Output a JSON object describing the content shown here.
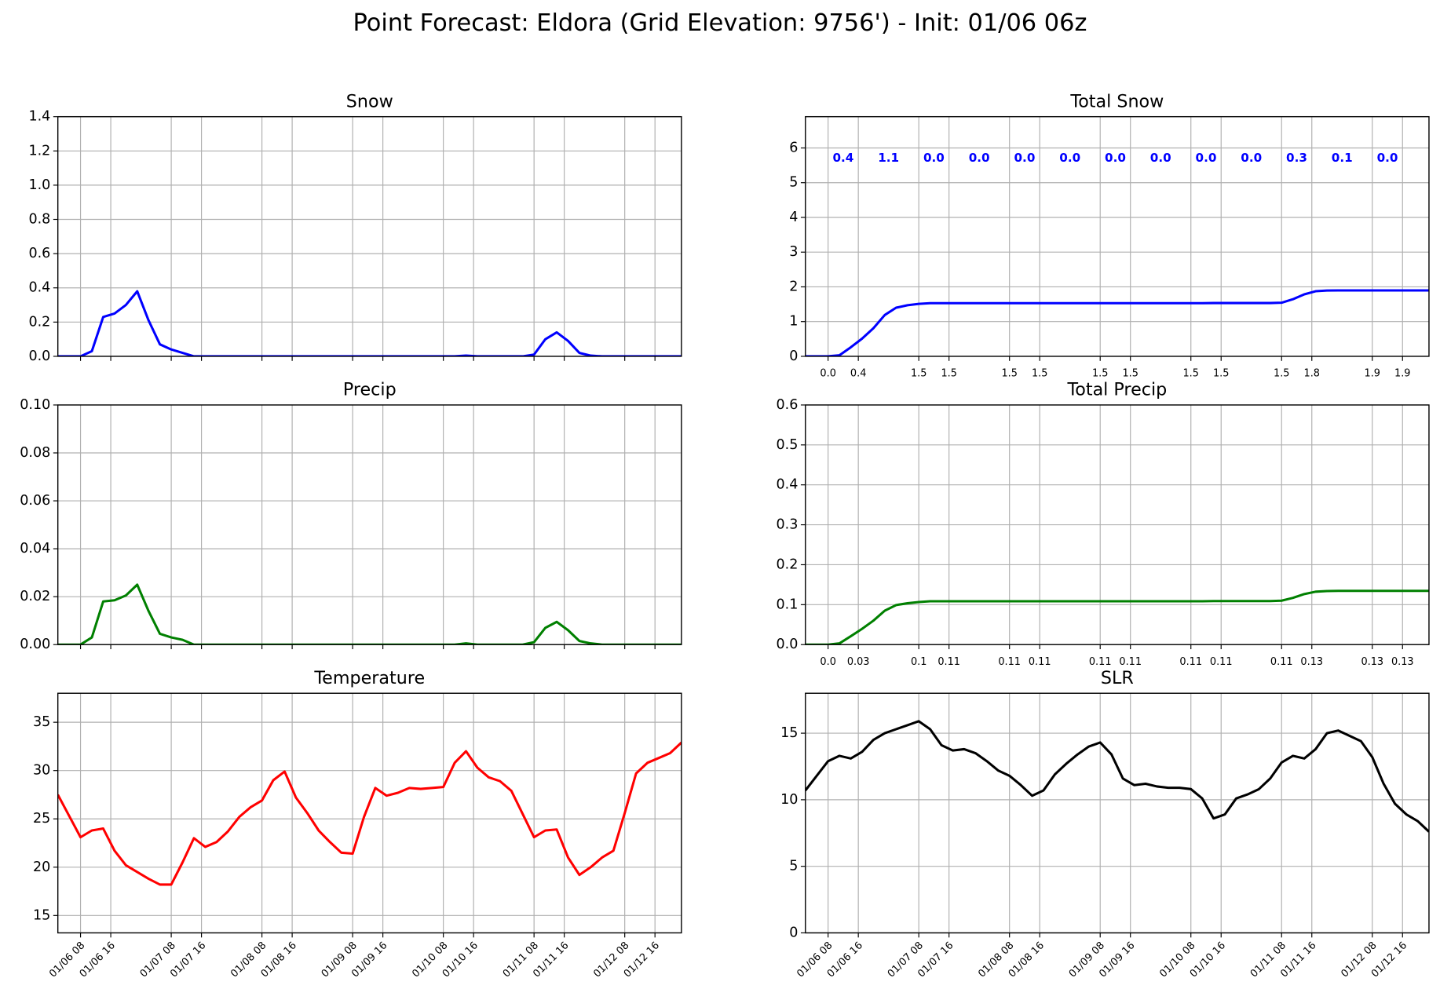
{
  "title": "Point Forecast: Eldora (Grid Elevation: 9756') - Init: 01/06 06z",
  "chart_data": [
    {
      "type": "line",
      "title": "Snow",
      "color": "#0000ff",
      "grid": true,
      "xtick_labels": false,
      "x": [
        "01/06 02",
        "01/06 05",
        "01/06 08",
        "01/06 11",
        "01/06 14",
        "01/06 17",
        "01/06 20",
        "01/06 23",
        "01/07 02",
        "01/07 05",
        "01/07 08",
        "01/07 11",
        "01/07 14",
        "01/07 17",
        "01/07 20",
        "01/07 23",
        "01/08 02",
        "01/08 05",
        "01/08 08",
        "01/08 11",
        "01/08 14",
        "01/08 17",
        "01/08 20",
        "01/08 23",
        "01/09 02",
        "01/09 05",
        "01/09 08",
        "01/09 11",
        "01/09 14",
        "01/09 17",
        "01/09 20",
        "01/09 23",
        "01/10 02",
        "01/10 05",
        "01/10 08",
        "01/10 11",
        "01/10 14",
        "01/10 17",
        "01/10 20",
        "01/10 23",
        "01/11 02",
        "01/11 05",
        "01/11 08",
        "01/11 11",
        "01/11 14",
        "01/11 17",
        "01/11 20",
        "01/11 23",
        "01/12 02",
        "01/12 05",
        "01/12 08",
        "01/12 11",
        "01/12 14",
        "01/12 17",
        "01/12 20",
        "01/12 23"
      ],
      "values": [
        0,
        0,
        0,
        0.03,
        0.23,
        0.25,
        0.3,
        0.38,
        0.21,
        0.07,
        0.04,
        0.02,
        0,
        0,
        0,
        0,
        0,
        0,
        0,
        0,
        0,
        0,
        0,
        0,
        0,
        0,
        0,
        0,
        0,
        0,
        0,
        0,
        0,
        0,
        0,
        0,
        0.004,
        0,
        0,
        0,
        0,
        0,
        0.01,
        0.1,
        0.14,
        0.09,
        0.02,
        0.004,
        0,
        0,
        0,
        0,
        0,
        0,
        0,
        0
      ],
      "xlim": [
        "01/06 02",
        "01/12 23"
      ],
      "xticks": [
        "01/06 08",
        "01/06 16",
        "01/07 08",
        "01/07 16",
        "01/08 08",
        "01/08 16",
        "01/09 08",
        "01/09 16",
        "01/10 08",
        "01/10 16",
        "01/11 08",
        "01/11 16",
        "01/12 08",
        "01/12 16"
      ],
      "ylim": [
        0,
        1.4
      ],
      "yticks": [
        {
          "value": 0,
          "label": "0.0"
        },
        0.2,
        0.4,
        0.6,
        0.8,
        {
          "value": 1,
          "label": "1.0"
        },
        1.2,
        1.4
      ]
    },
    {
      "type": "line",
      "title": "Total Snow",
      "color": "#0000ff",
      "grid": true,
      "x": [
        "01/06 02",
        "01/06 05",
        "01/06 08",
        "01/06 11",
        "01/06 14",
        "01/06 17",
        "01/06 20",
        "01/06 23",
        "01/07 02",
        "01/07 05",
        "01/07 08",
        "01/07 11",
        "01/07 14",
        "01/07 17",
        "01/07 20",
        "01/07 23",
        "01/08 02",
        "01/08 05",
        "01/08 08",
        "01/08 11",
        "01/08 14",
        "01/08 17",
        "01/08 20",
        "01/08 23",
        "01/09 02",
        "01/09 05",
        "01/09 08",
        "01/09 11",
        "01/09 14",
        "01/09 17",
        "01/09 20",
        "01/09 23",
        "01/10 02",
        "01/10 05",
        "01/10 08",
        "01/10 11",
        "01/10 14",
        "01/10 17",
        "01/10 20",
        "01/10 23",
        "01/11 02",
        "01/11 05",
        "01/11 08",
        "01/11 11",
        "01/11 14",
        "01/11 17",
        "01/11 20",
        "01/11 23",
        "01/12 02",
        "01/12 05",
        "01/12 08",
        "01/12 11",
        "01/12 14",
        "01/12 17",
        "01/12 20",
        "01/12 23"
      ],
      "values": [
        0,
        0,
        0,
        0.03,
        0.26,
        0.51,
        0.81,
        1.19,
        1.4,
        1.47,
        1.51,
        1.53,
        1.53,
        1.53,
        1.53,
        1.53,
        1.53,
        1.53,
        1.53,
        1.53,
        1.53,
        1.53,
        1.53,
        1.53,
        1.53,
        1.53,
        1.53,
        1.53,
        1.53,
        1.53,
        1.53,
        1.53,
        1.53,
        1.53,
        1.53,
        1.53,
        1.534,
        1.534,
        1.534,
        1.534,
        1.534,
        1.534,
        1.544,
        1.644,
        1.784,
        1.874,
        1.894,
        1.898,
        1.898,
        1.898,
        1.898,
        1.898,
        1.898,
        1.898,
        1.898,
        1.898
      ],
      "xlim": [
        "01/06 02",
        "01/12 23"
      ],
      "xticks": [
        {
          "value": "01/06 08",
          "label": "0.0"
        },
        {
          "value": "01/06 16",
          "label": "0.4"
        },
        {
          "value": "01/07 08",
          "label": "1.5"
        },
        {
          "value": "01/07 16",
          "label": "1.5"
        },
        {
          "value": "01/08 08",
          "label": "1.5"
        },
        {
          "value": "01/08 16",
          "label": "1.5"
        },
        {
          "value": "01/09 08",
          "label": "1.5"
        },
        {
          "value": "01/09 16",
          "label": "1.5"
        },
        {
          "value": "01/10 08",
          "label": "1.5"
        },
        {
          "value": "01/10 16",
          "label": "1.5"
        },
        {
          "value": "01/11 08",
          "label": "1.5"
        },
        {
          "value": "01/11 16",
          "label": "1.8"
        },
        {
          "value": "01/12 08",
          "label": "1.9"
        },
        {
          "value": "01/12 16",
          "label": "1.9"
        }
      ],
      "ylim": [
        0,
        6.9
      ],
      "yticks": [
        0,
        1,
        2,
        3,
        4,
        5,
        6
      ],
      "annotations": {
        "x": [
          "01/06 12",
          "01/07 00",
          "01/07 12",
          "01/08 00",
          "01/08 12",
          "01/09 00",
          "01/09 12",
          "01/10 00",
          "01/10 12",
          "01/11 00",
          "01/11 12",
          "01/12 00",
          "01/12 12"
        ],
        "values": [
          0.4,
          1.1,
          0,
          0,
          0,
          0,
          0,
          0,
          0,
          0,
          0.3,
          0.1,
          0
        ],
        "value_labels": [
          "0.4",
          "1.1",
          "0.0",
          "0.0",
          "0.0",
          "0.0",
          "0.0",
          "0.0",
          "0.0",
          "0.0",
          "0.3",
          "0.1",
          "0.0"
        ]
      }
    },
    {
      "type": "line",
      "title": "Precip",
      "color": "#008000",
      "grid": true,
      "xtick_labels": false,
      "x": [
        "01/06 02",
        "01/06 05",
        "01/06 08",
        "01/06 11",
        "01/06 14",
        "01/06 17",
        "01/06 20",
        "01/06 23",
        "01/07 02",
        "01/07 05",
        "01/07 08",
        "01/07 11",
        "01/07 14",
        "01/07 17",
        "01/07 20",
        "01/07 23",
        "01/08 02",
        "01/08 05",
        "01/08 08",
        "01/08 11",
        "01/08 14",
        "01/08 17",
        "01/08 20",
        "01/08 23",
        "01/09 02",
        "01/09 05",
        "01/09 08",
        "01/09 11",
        "01/09 14",
        "01/09 17",
        "01/09 20",
        "01/09 23",
        "01/10 02",
        "01/10 05",
        "01/10 08",
        "01/10 11",
        "01/10 14",
        "01/10 17",
        "01/10 20",
        "01/10 23",
        "01/11 02",
        "01/11 05",
        "01/11 08",
        "01/11 11",
        "01/11 14",
        "01/11 17",
        "01/11 20",
        "01/11 23",
        "01/12 02",
        "01/12 05",
        "01/12 08",
        "01/12 11",
        "01/12 14",
        "01/12 17",
        "01/12 20",
        "01/12 23"
      ],
      "values": [
        0,
        0,
        0,
        0.003,
        0.018,
        0.0185,
        0.0205,
        0.025,
        0.014,
        0.0045,
        0.003,
        0.002,
        0,
        0,
        0,
        0,
        0,
        0,
        0,
        0,
        0,
        0,
        0,
        0,
        0,
        0,
        0,
        0,
        0,
        0,
        0,
        0,
        0,
        0,
        0,
        0,
        0.0005,
        0,
        0,
        0,
        0,
        0,
        0.001,
        0.007,
        0.0095,
        0.006,
        0.0015,
        0.0005,
        0,
        0,
        0,
        0,
        0,
        0,
        0,
        0
      ],
      "xlim": [
        "01/06 02",
        "01/12 23"
      ],
      "xticks": [
        "01/06 08",
        "01/06 16",
        "01/07 08",
        "01/07 16",
        "01/08 08",
        "01/08 16",
        "01/09 08",
        "01/09 16",
        "01/10 08",
        "01/10 16",
        "01/11 08",
        "01/11 16",
        "01/12 08",
        "01/12 16"
      ],
      "ylim": [
        0,
        0.1
      ],
      "yticks": [
        {
          "value": 0,
          "label": "0.00"
        },
        {
          "value": 0.02,
          "label": "0.02"
        },
        {
          "value": 0.04,
          "label": "0.04"
        },
        {
          "value": 0.06,
          "label": "0.06"
        },
        {
          "value": 0.08,
          "label": "0.08"
        },
        {
          "value": 0.1,
          "label": "0.10"
        }
      ]
    },
    {
      "type": "line",
      "title": "Total Precip",
      "color": "#008000",
      "grid": true,
      "x": [
        "01/06 02",
        "01/06 05",
        "01/06 08",
        "01/06 11",
        "01/06 14",
        "01/06 17",
        "01/06 20",
        "01/06 23",
        "01/07 02",
        "01/07 05",
        "01/07 08",
        "01/07 11",
        "01/07 14",
        "01/07 17",
        "01/07 20",
        "01/07 23",
        "01/08 02",
        "01/08 05",
        "01/08 08",
        "01/08 11",
        "01/08 14",
        "01/08 17",
        "01/08 20",
        "01/08 23",
        "01/09 02",
        "01/09 05",
        "01/09 08",
        "01/09 11",
        "01/09 14",
        "01/09 17",
        "01/09 20",
        "01/09 23",
        "01/10 02",
        "01/10 05",
        "01/10 08",
        "01/10 11",
        "01/10 14",
        "01/10 17",
        "01/10 20",
        "01/10 23",
        "01/11 02",
        "01/11 05",
        "01/11 08",
        "01/11 11",
        "01/11 14",
        "01/11 17",
        "01/11 20",
        "01/11 23",
        "01/12 02",
        "01/12 05",
        "01/12 08",
        "01/12 11",
        "01/12 14",
        "01/12 17",
        "01/12 20",
        "01/12 23"
      ],
      "values": [
        0,
        0,
        0,
        0.003,
        0.021,
        0.0395,
        0.06,
        0.085,
        0.099,
        0.1035,
        0.1065,
        0.1085,
        0.1085,
        0.1085,
        0.1085,
        0.1085,
        0.1085,
        0.1085,
        0.1085,
        0.1085,
        0.1085,
        0.1085,
        0.1085,
        0.1085,
        0.1085,
        0.1085,
        0.1085,
        0.1085,
        0.1085,
        0.1085,
        0.1085,
        0.1085,
        0.1085,
        0.1085,
        0.1085,
        0.1085,
        0.109,
        0.109,
        0.109,
        0.109,
        0.109,
        0.109,
        0.11,
        0.117,
        0.1265,
        0.1325,
        0.134,
        0.1345,
        0.1345,
        0.1345,
        0.1345,
        0.1345,
        0.1345,
        0.1345,
        0.1345,
        0.1345
      ],
      "xlim": [
        "01/06 02",
        "01/12 23"
      ],
      "xticks": [
        {
          "value": "01/06 08",
          "label": "0.0"
        },
        {
          "value": "01/06 16",
          "label": "0.03"
        },
        {
          "value": "01/07 08",
          "label": "0.1"
        },
        {
          "value": "01/07 16",
          "label": "0.11"
        },
        {
          "value": "01/08 08",
          "label": "0.11"
        },
        {
          "value": "01/08 16",
          "label": "0.11"
        },
        {
          "value": "01/09 08",
          "label": "0.11"
        },
        {
          "value": "01/09 16",
          "label": "0.11"
        },
        {
          "value": "01/10 08",
          "label": "0.11"
        },
        {
          "value": "01/10 16",
          "label": "0.11"
        },
        {
          "value": "01/11 08",
          "label": "0.11"
        },
        {
          "value": "01/11 16",
          "label": "0.13"
        },
        {
          "value": "01/12 08",
          "label": "0.13"
        },
        {
          "value": "01/12 16",
          "label": "0.13"
        }
      ],
      "ylim": [
        0,
        0.6
      ],
      "yticks": [
        {
          "value": 0,
          "label": "0.0"
        },
        0.1,
        0.2,
        0.3,
        0.4,
        0.5,
        0.6
      ]
    },
    {
      "type": "line",
      "title": "Temperature",
      "color": "#ff0000",
      "grid": true,
      "xtick_rotation": 45,
      "x": [
        "01/06 02",
        "01/06 05",
        "01/06 08",
        "01/06 11",
        "01/06 14",
        "01/06 17",
        "01/06 20",
        "01/06 23",
        "01/07 02",
        "01/07 05",
        "01/07 08",
        "01/07 11",
        "01/07 14",
        "01/07 17",
        "01/07 20",
        "01/07 23",
        "01/08 02",
        "01/08 05",
        "01/08 08",
        "01/08 11",
        "01/08 14",
        "01/08 17",
        "01/08 20",
        "01/08 23",
        "01/09 02",
        "01/09 05",
        "01/09 08",
        "01/09 11",
        "01/09 14",
        "01/09 17",
        "01/09 20",
        "01/09 23",
        "01/10 02",
        "01/10 05",
        "01/10 08",
        "01/10 11",
        "01/10 14",
        "01/10 17",
        "01/10 20",
        "01/10 23",
        "01/11 02",
        "01/11 05",
        "01/11 08",
        "01/11 11",
        "01/11 14",
        "01/11 17",
        "01/11 20",
        "01/11 23",
        "01/12 02",
        "01/12 05",
        "01/12 08",
        "01/12 11",
        "01/12 14",
        "01/12 17",
        "01/12 20",
        "01/12 23"
      ],
      "values": [
        27.5,
        25.3,
        23.1,
        23.8,
        24,
        21.7,
        20.2,
        19.5,
        18.8,
        18.2,
        18.2,
        20.5,
        23,
        22.1,
        22.6,
        23.7,
        25.2,
        26.2,
        26.9,
        29,
        29.9,
        27.2,
        25.6,
        23.8,
        22.6,
        21.5,
        21.4,
        25.2,
        28.2,
        27.4,
        27.7,
        28.2,
        28.1,
        28.2,
        28.3,
        30.8,
        32,
        30.3,
        29.3,
        28.9,
        27.9,
        25.5,
        23.1,
        23.8,
        23.9,
        21,
        19.2,
        20,
        21,
        21.7,
        25.6,
        29.7,
        30.8,
        31.3,
        31.8,
        32.9
      ],
      "xlim": [
        "01/06 02",
        "01/12 23"
      ],
      "xticks": [
        "01/06 08",
        "01/06 16",
        "01/07 08",
        "01/07 16",
        "01/08 08",
        "01/08 16",
        "01/09 08",
        "01/09 16",
        "01/10 08",
        "01/10 16",
        "01/11 08",
        "01/11 16",
        "01/12 08",
        "01/12 16"
      ],
      "ylim": [
        13.2,
        38
      ],
      "yticks": [
        15,
        20,
        25,
        30,
        35
      ]
    },
    {
      "type": "line",
      "title": "SLR",
      "color": "#000000",
      "grid": true,
      "xtick_rotation": 45,
      "x": [
        "01/06 02",
        "01/06 05",
        "01/06 08",
        "01/06 11",
        "01/06 14",
        "01/06 17",
        "01/06 20",
        "01/06 23",
        "01/07 02",
        "01/07 05",
        "01/07 08",
        "01/07 11",
        "01/07 14",
        "01/07 17",
        "01/07 20",
        "01/07 23",
        "01/08 02",
        "01/08 05",
        "01/08 08",
        "01/08 11",
        "01/08 14",
        "01/08 17",
        "01/08 20",
        "01/08 23",
        "01/09 02",
        "01/09 05",
        "01/09 08",
        "01/09 11",
        "01/09 14",
        "01/09 17",
        "01/09 20",
        "01/09 23",
        "01/10 02",
        "01/10 05",
        "01/10 08",
        "01/10 11",
        "01/10 14",
        "01/10 17",
        "01/10 20",
        "01/10 23",
        "01/11 02",
        "01/11 05",
        "01/11 08",
        "01/11 11",
        "01/11 14",
        "01/11 17",
        "01/11 20",
        "01/11 23",
        "01/12 02",
        "01/12 05",
        "01/12 08",
        "01/12 11",
        "01/12 14",
        "01/12 17",
        "01/12 20",
        "01/12 23"
      ],
      "values": [
        10.7,
        11.8,
        12.9,
        13.3,
        13.1,
        13.6,
        14.5,
        15,
        15.3,
        15.6,
        15.9,
        15.3,
        14.1,
        13.7,
        13.8,
        13.5,
        12.9,
        12.2,
        11.8,
        11.1,
        10.3,
        10.7,
        11.9,
        12.7,
        13.4,
        14,
        14.3,
        13.4,
        11.6,
        11.1,
        11.2,
        11,
        10.9,
        10.9,
        10.8,
        10.1,
        8.6,
        8.9,
        10.1,
        10.4,
        10.8,
        11.6,
        12.8,
        13.3,
        13.1,
        13.8,
        15,
        15.2,
        14.8,
        14.4,
        13.2,
        11.2,
        9.7,
        8.9,
        8.4,
        7.6
      ],
      "xlim": [
        "01/06 02",
        "01/12 23"
      ],
      "xticks": [
        "01/06 08",
        "01/06 16",
        "01/07 08",
        "01/07 16",
        "01/08 08",
        "01/08 16",
        "01/09 08",
        "01/09 16",
        "01/10 08",
        "01/10 16",
        "01/11 08",
        "01/11 16",
        "01/12 08",
        "01/12 16"
      ],
      "ylim": [
        0,
        18
      ],
      "yticks": [
        0,
        5,
        10,
        15
      ]
    }
  ]
}
